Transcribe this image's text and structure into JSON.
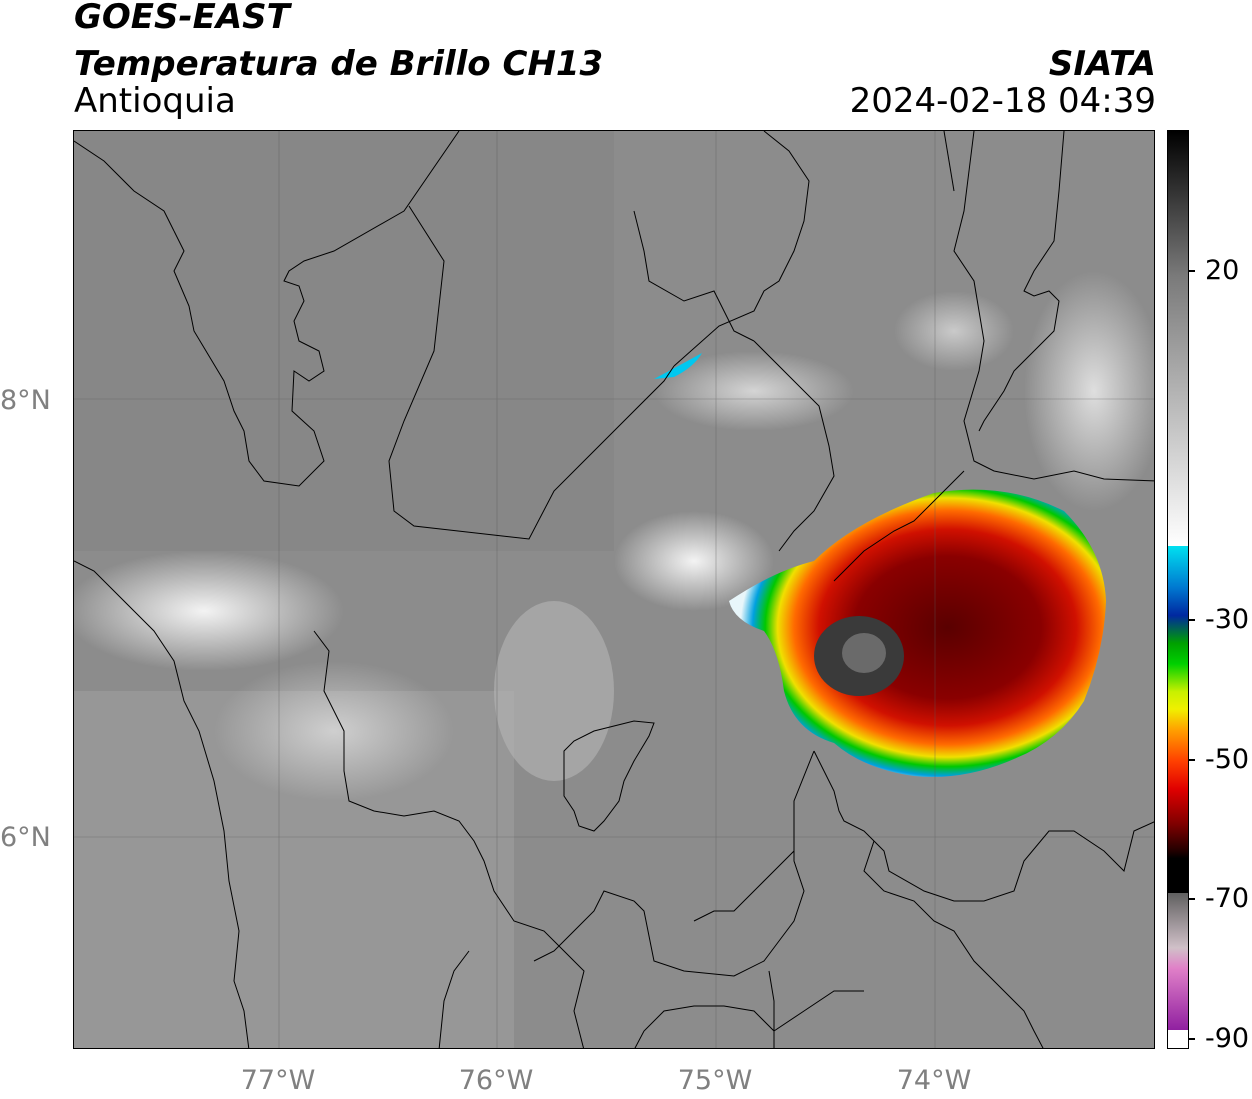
{
  "header": {
    "satellite": "GOES-EAST",
    "product": "Temperatura de Brillo CH13",
    "region": "Antioquia",
    "organization": "SIATA",
    "datetime": "2024-02-18 04:39"
  },
  "map": {
    "lat_labels": [
      "8°N",
      "6°N"
    ],
    "lon_labels": [
      "77°W",
      "76°W",
      "75°W",
      "74°W"
    ]
  },
  "colorbar": {
    "tick_labels": [
      "20",
      "-30",
      "-50",
      "-70",
      "-90"
    ],
    "colors": {
      "cyan": "#00e0f0",
      "blue": "#0028a0",
      "green": "#00c800",
      "yellow": "#f0f000",
      "orange": "#ff8c00",
      "red": "#e00000",
      "dark_red": "#400000",
      "black": "#000000",
      "pink": "#e080c8",
      "purple": "#9020a0"
    }
  }
}
